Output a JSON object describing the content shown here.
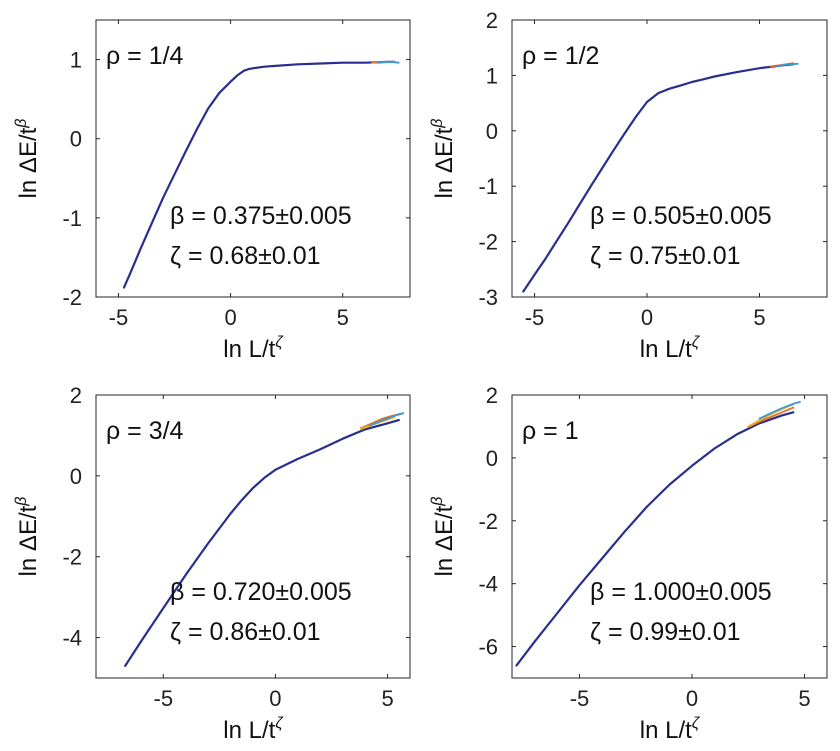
{
  "chart_data": [
    {
      "type": "line",
      "annotations": [
        "ρ = 1/4",
        "β = 0.375±0.005",
        "ζ = 0.68±0.01"
      ],
      "xlabel": "ln L/tζ",
      "ylabel": "ln ΔE/tβ",
      "xlim": [
        -6,
        8
      ],
      "ylim": [
        -2,
        1.5
      ],
      "x_ticks": [
        "-5",
        "0",
        "5"
      ],
      "x_tick_values": [
        -5,
        0,
        5
      ],
      "y_ticks": [
        "-2",
        "-1",
        "0",
        "1"
      ],
      "y_tick_values": [
        -2,
        -1,
        0,
        1
      ],
      "series": [
        {
          "color": "#2a2e8c",
          "x": [
            -4.75,
            -4.5,
            -4.0,
            -3.5,
            -3.0,
            -2.5,
            -2.0,
            -1.5,
            -1.0,
            -0.5,
            0.0,
            0.3,
            0.6,
            0.8,
            1.0,
            1.5,
            2.0,
            3.0,
            4.0,
            5.0,
            6.0,
            7.0,
            7.3
          ],
          "y": [
            -1.88,
            -1.72,
            -1.38,
            -1.06,
            -0.74,
            -0.45,
            -0.16,
            0.12,
            0.38,
            0.58,
            0.72,
            0.8,
            0.86,
            0.88,
            0.89,
            0.91,
            0.92,
            0.94,
            0.95,
            0.96,
            0.96,
            0.97,
            0.97
          ]
        },
        {
          "color": "#e0702b",
          "x": [
            6.3,
            6.8,
            7.3
          ],
          "y": [
            0.96,
            0.97,
            0.97
          ]
        },
        {
          "color": "#3b9ad6",
          "x": [
            6.6,
            7.1,
            7.5
          ],
          "y": [
            0.96,
            0.97,
            0.96
          ]
        }
      ]
    },
    {
      "type": "line",
      "annotations": [
        "ρ = 1/2",
        "β = 0.505±0.005",
        "ζ = 0.75±0.01"
      ],
      "xlabel": "ln L/tζ",
      "ylabel": "ln ΔE/tβ",
      "xlim": [
        -6,
        8
      ],
      "ylim": [
        -3,
        2
      ],
      "x_ticks": [
        "-5",
        "0",
        "5"
      ],
      "x_tick_values": [
        -5,
        0,
        5
      ],
      "y_ticks": [
        "-3",
        "-2",
        "-1",
        "0",
        "1",
        "2"
      ],
      "y_tick_values": [
        -3,
        -2,
        -1,
        0,
        1,
        2
      ],
      "series": [
        {
          "color": "#2a2e8c",
          "x": [
            -5.5,
            -5.0,
            -4.5,
            -4.0,
            -3.5,
            -3.0,
            -2.5,
            -2.0,
            -1.5,
            -1.0,
            -0.5,
            0.0,
            0.5,
            1.0,
            1.5,
            2.0,
            2.5,
            3.0,
            4.0,
            5.0,
            6.0,
            6.5
          ],
          "y": [
            -2.9,
            -2.6,
            -2.3,
            -1.98,
            -1.66,
            -1.33,
            -1.0,
            -0.68,
            -0.36,
            -0.05,
            0.25,
            0.52,
            0.68,
            0.76,
            0.82,
            0.88,
            0.93,
            0.98,
            1.06,
            1.13,
            1.18,
            1.2
          ]
        },
        {
          "color": "#e0702b",
          "x": [
            5.5,
            6.0,
            6.5
          ],
          "y": [
            1.16,
            1.19,
            1.22
          ]
        },
        {
          "color": "#3b9ad6",
          "x": [
            5.8,
            6.3,
            6.7
          ],
          "y": [
            1.17,
            1.2,
            1.21
          ]
        }
      ]
    },
    {
      "type": "line",
      "annotations": [
        "ρ = 3/4",
        "β = 0.720±0.005",
        "ζ = 0.86±0.01"
      ],
      "xlabel": "ln L/tζ",
      "ylabel": "ln ΔE/tβ",
      "xlim": [
        -8,
        6
      ],
      "ylim": [
        -5,
        2
      ],
      "x_ticks": [
        "-5",
        "0",
        "5"
      ],
      "x_tick_values": [
        -5,
        0,
        5
      ],
      "y_ticks": [
        "-4",
        "-2",
        "0",
        "2"
      ],
      "y_tick_values": [
        -4,
        -2,
        0,
        2
      ],
      "series": [
        {
          "color": "#2a2e8c",
          "x": [
            -6.7,
            -6.0,
            -5.0,
            -4.0,
            -3.0,
            -2.0,
            -1.5,
            -1.0,
            -0.5,
            0.0,
            1.0,
            2.0,
            3.0,
            4.0,
            5.0,
            5.5
          ],
          "y": [
            -4.7,
            -4.1,
            -3.27,
            -2.45,
            -1.67,
            -0.93,
            -0.6,
            -0.3,
            -0.05,
            0.15,
            0.42,
            0.66,
            0.92,
            1.15,
            1.3,
            1.38
          ]
        },
        {
          "color": "#e0702b",
          "x": [
            3.8,
            4.3,
            4.8,
            5.3,
            5.6
          ],
          "y": [
            1.18,
            1.3,
            1.42,
            1.5,
            1.54
          ]
        },
        {
          "color": "#e8b31c",
          "x": [
            3.8,
            4.3,
            4.8,
            5.3
          ],
          "y": [
            1.16,
            1.26,
            1.35,
            1.45
          ]
        },
        {
          "color": "#3b9ad6",
          "x": [
            4.2,
            4.8,
            5.4,
            5.7
          ],
          "y": [
            1.24,
            1.38,
            1.5,
            1.55
          ]
        }
      ]
    },
    {
      "type": "line",
      "annotations": [
        "ρ = 1",
        "β = 1.000±0.005",
        "ζ = 0.99±0.01"
      ],
      "xlabel": "ln L/tζ",
      "ylabel": "ln ΔE/tβ",
      "xlim": [
        -8,
        6
      ],
      "ylim": [
        -7,
        2
      ],
      "x_ticks": [
        "-5",
        "0",
        "5"
      ],
      "x_tick_values": [
        -5,
        0,
        5
      ],
      "y_ticks": [
        "-6",
        "-4",
        "-2",
        "0",
        "2"
      ],
      "y_tick_values": [
        -6,
        -4,
        -2,
        0,
        2
      ],
      "series": [
        {
          "color": "#2a2e8c",
          "x": [
            -7.8,
            -7.0,
            -6.0,
            -5.0,
            -4.0,
            -3.0,
            -2.0,
            -1.0,
            0.0,
            1.0,
            2.0,
            3.0,
            4.0,
            4.5
          ],
          "y": [
            -6.6,
            -5.85,
            -4.95,
            -4.05,
            -3.2,
            -2.35,
            -1.55,
            -0.85,
            -0.25,
            0.3,
            0.75,
            1.1,
            1.35,
            1.45
          ]
        },
        {
          "color": "#e0702b",
          "x": [
            2.5,
            3.0,
            3.5,
            4.0,
            4.5
          ],
          "y": [
            0.98,
            1.15,
            1.3,
            1.45,
            1.6
          ]
        },
        {
          "color": "#e8b31c",
          "x": [
            2.5,
            3.0,
            3.5,
            4.0,
            4.5
          ],
          "y": [
            1.0,
            1.2,
            1.38,
            1.55,
            1.7
          ]
        },
        {
          "color": "#3b9ad6",
          "x": [
            3.0,
            3.5,
            4.0,
            4.5,
            4.8
          ],
          "y": [
            1.25,
            1.42,
            1.58,
            1.72,
            1.78
          ]
        }
      ]
    }
  ]
}
